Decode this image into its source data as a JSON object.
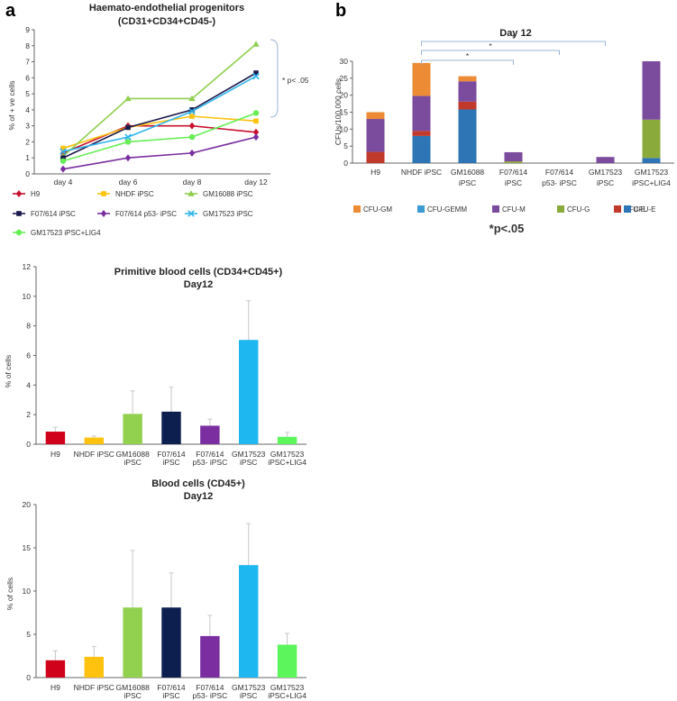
{
  "panels": {
    "a": "a",
    "b": "b"
  },
  "chart_data": [
    {
      "id": "line",
      "type": "line",
      "title": "Haemato-endothelial progenitors",
      "subtitle": "(CD31+CD34+CD45-)",
      "xlabel": "",
      "ylabel": "% of + ve cells",
      "ylim": [
        0,
        9
      ],
      "yticks": [
        0,
        1,
        2,
        3,
        4,
        5,
        6,
        7,
        8,
        9
      ],
      "categories": [
        "day 4",
        "day 6",
        "day 8",
        "day 12"
      ],
      "annotation": "* p< .05",
      "series": [
        {
          "name": "H9",
          "color": "#c8102e",
          "marker": "diamond",
          "values": [
            1.3,
            3.0,
            3.0,
            2.6
          ]
        },
        {
          "name": "NHDF iPSC",
          "color": "#ffc20e",
          "marker": "square",
          "values": [
            1.6,
            2.9,
            3.6,
            3.3
          ]
        },
        {
          "name": "GM16088 iPSC",
          "color": "#8fce4c",
          "marker": "triangle",
          "values": [
            1.1,
            4.7,
            4.7,
            8.1
          ]
        },
        {
          "name": "F07/614 iPSC",
          "color": "#1b1a4e",
          "marker": "square",
          "values": [
            1.0,
            2.9,
            4.0,
            6.3
          ]
        },
        {
          "name": "F07/614 p53- iPSC",
          "color": "#7a2ea0",
          "marker": "diamond",
          "values": [
            0.3,
            1.0,
            1.3,
            2.3
          ]
        },
        {
          "name": "GM17523 iPSC",
          "color": "#2fb4ea",
          "marker": "x",
          "values": [
            1.4,
            2.3,
            3.9,
            6.1
          ]
        },
        {
          "name": "GM17523 iPSC+LIG4",
          "color": "#66ee55",
          "marker": "circle",
          "values": [
            0.8,
            2.0,
            2.3,
            3.8
          ]
        }
      ]
    },
    {
      "id": "stacked",
      "type": "bar",
      "stacked": true,
      "title": "Day 12",
      "xlabel": "",
      "ylabel": "CFUs/100,000 cells",
      "ylim": [
        0,
        30
      ],
      "yticks": [
        0,
        5,
        10,
        15,
        20,
        25,
        30
      ],
      "categories": [
        "H9",
        "NHDF iPSC",
        "GM16088\niPSC",
        "F07/614\niPSC",
        "F07/614\np53- iPSC",
        "GM17523\niPSC",
        "GM17523\niPSC+LIG4"
      ],
      "series": [
        {
          "name": "CFU-E",
          "color": "#2e75b6",
          "values": [
            0,
            8,
            15.8,
            0,
            0,
            0,
            1.5
          ]
        },
        {
          "name": "BFU-E",
          "color": "#c0392b",
          "values": [
            3.3,
            1.5,
            2.3,
            0,
            0,
            0,
            0
          ]
        },
        {
          "name": "CFU-G",
          "color": "#8aab3c",
          "values": [
            0,
            0,
            0,
            0.5,
            0,
            0,
            11.3
          ]
        },
        {
          "name": "CFU-M",
          "color": "#7b4b9e",
          "values": [
            9.7,
            10.3,
            6.0,
            2.7,
            0,
            1.8,
            17.2
          ]
        },
        {
          "name": "CFU-GEMM",
          "color": "#3a9bd5",
          "values": [
            0,
            0,
            0,
            0,
            0,
            0,
            0
          ]
        },
        {
          "name": "CFU-GM",
          "color": "#ed8b34",
          "values": [
            2.0,
            9.7,
            1.5,
            0,
            0,
            0,
            0
          ]
        }
      ],
      "legend_order": [
        "CFU-GM",
        "CFU-GEMM",
        "CFU-M",
        "CFU-G",
        "BFU-E",
        "CFU-E"
      ],
      "significance_label": "*",
      "footnote": "*p<.05"
    },
    {
      "id": "primitive",
      "type": "bar",
      "title": "Primitive blood cells (CD34+CD45+)",
      "subtitle": "Day12",
      "xlabel": "",
      "ylabel": "% of cells",
      "ylim": [
        0,
        12
      ],
      "yticks": [
        0,
        2,
        4,
        6,
        8,
        10,
        12
      ],
      "categories": [
        "H9",
        "NHDF iPSC",
        "GM16088\niPSC",
        "F07/614\niPSC",
        "F07/614\np53- iPSC",
        "GM17523\niPSC",
        "GM17523\niPSC+LIG4"
      ],
      "values": [
        0.85,
        0.45,
        2.05,
        2.2,
        1.25,
        7.05,
        0.5
      ],
      "errors": [
        0.3,
        0.1,
        1.55,
        1.65,
        0.45,
        2.65,
        0.3
      ],
      "colors": [
        "#d0021b",
        "#ffc20e",
        "#92d050",
        "#0d1f4f",
        "#7a2ea0",
        "#1fb7f0",
        "#5cf55c"
      ]
    },
    {
      "id": "blood",
      "type": "bar",
      "title": "Blood cells (CD45+)",
      "subtitle": "Day12",
      "xlabel": "",
      "ylabel": "% of cells",
      "ylim": [
        0,
        20
      ],
      "yticks": [
        0,
        5,
        10,
        15,
        20
      ],
      "categories": [
        "H9",
        "NHDF iPSC",
        "GM16088\niPSC",
        "F07/614\niPSC",
        "F07/614\np53- iPSC",
        "GM17523\niPSC",
        "GM17523\niPSC+LIG4"
      ],
      "values": [
        2.0,
        2.4,
        8.1,
        8.1,
        4.8,
        13.0,
        3.8
      ],
      "errors": [
        1.1,
        1.2,
        6.6,
        4.0,
        2.4,
        4.8,
        1.3
      ],
      "colors": [
        "#d0021b",
        "#ffc20e",
        "#92d050",
        "#0d1f4f",
        "#7a2ea0",
        "#1fb7f0",
        "#5cf55c"
      ]
    }
  ]
}
